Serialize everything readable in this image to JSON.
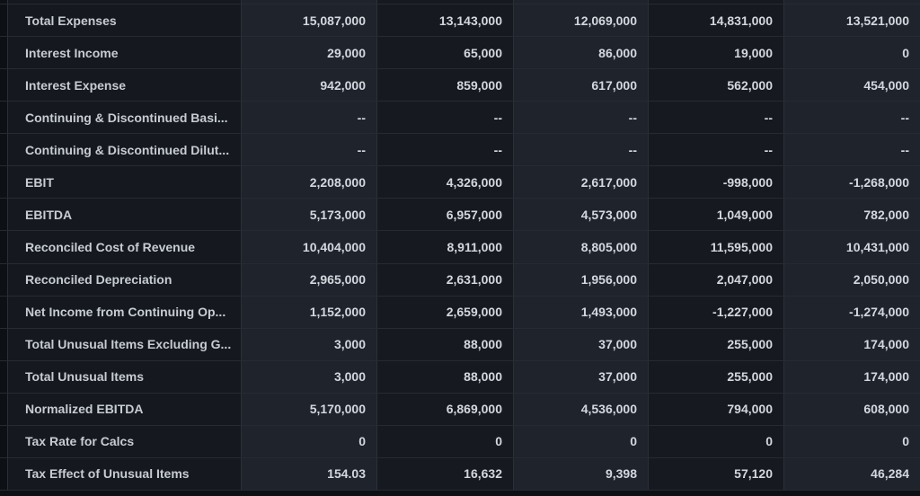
{
  "table": {
    "label_column_header": "",
    "num_value_columns": 5,
    "rows": [
      {
        "label": "Total Expenses",
        "values": [
          "15,087,000",
          "13,143,000",
          "12,069,000",
          "14,831,000",
          "13,521,000"
        ]
      },
      {
        "label": "Interest Income",
        "values": [
          "29,000",
          "65,000",
          "86,000",
          "19,000",
          "0"
        ]
      },
      {
        "label": "Interest Expense",
        "values": [
          "942,000",
          "859,000",
          "617,000",
          "562,000",
          "454,000"
        ]
      },
      {
        "label": "Continuing & Discontinued Basi...",
        "values": [
          "--",
          "--",
          "--",
          "--",
          "--"
        ]
      },
      {
        "label": "Continuing & Discontinued Dilut...",
        "values": [
          "--",
          "--",
          "--",
          "--",
          "--"
        ]
      },
      {
        "label": "EBIT",
        "values": [
          "2,208,000",
          "4,326,000",
          "2,617,000",
          "-998,000",
          "-1,268,000"
        ]
      },
      {
        "label": "EBITDA",
        "values": [
          "5,173,000",
          "6,957,000",
          "4,573,000",
          "1,049,000",
          "782,000"
        ]
      },
      {
        "label": "Reconciled Cost of Revenue",
        "values": [
          "10,404,000",
          "8,911,000",
          "8,805,000",
          "11,595,000",
          "10,431,000"
        ]
      },
      {
        "label": "Reconciled Depreciation",
        "values": [
          "2,965,000",
          "2,631,000",
          "1,956,000",
          "2,047,000",
          "2,050,000"
        ]
      },
      {
        "label": "Net Income from Continuing Op...",
        "values": [
          "1,152,000",
          "2,659,000",
          "1,493,000",
          "-1,227,000",
          "-1,274,000"
        ]
      },
      {
        "label": "Total Unusual Items Excluding G...",
        "values": [
          "3,000",
          "88,000",
          "37,000",
          "255,000",
          "174,000"
        ]
      },
      {
        "label": "Total Unusual Items",
        "values": [
          "3,000",
          "88,000",
          "37,000",
          "255,000",
          "174,000"
        ]
      },
      {
        "label": "Normalized EBITDA",
        "values": [
          "5,170,000",
          "6,869,000",
          "4,536,000",
          "794,000",
          "608,000"
        ]
      },
      {
        "label": "Tax Rate for Calcs",
        "values": [
          "0",
          "0",
          "0",
          "0",
          "0"
        ]
      },
      {
        "label": "Tax Effect of Unusual Items",
        "values": [
          "154.03",
          "16,632",
          "9,398",
          "57,120",
          "46,284"
        ]
      }
    ]
  },
  "colors": {
    "page_background": "#0d1015",
    "label_column_background": "#15181e",
    "value_column_dark": "#16191f",
    "value_column_light": "#1f232b",
    "row_divider": "#262b33",
    "column_divider": "#2a2f38",
    "label_text": "#c7ccd4",
    "value_text": "#d3d7de"
  }
}
